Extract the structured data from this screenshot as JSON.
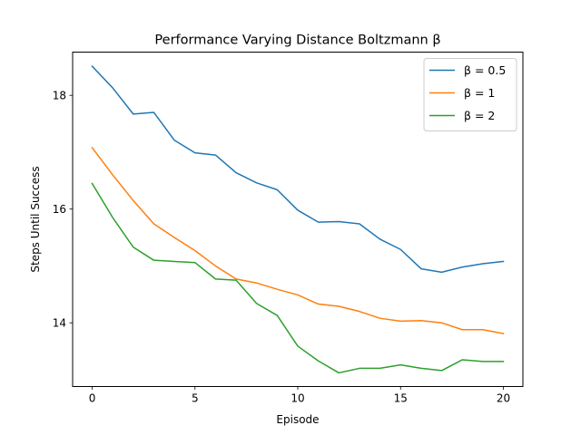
{
  "chart_data": {
    "type": "line",
    "title": "Performance Varying Distance Boltzmann β",
    "xlabel": "Episode",
    "ylabel": "Steps Until Success",
    "xlim": [
      -0.95,
      20.95
    ],
    "ylim": [
      12.88,
      18.76
    ],
    "xticks": [
      0,
      5,
      10,
      15,
      20
    ],
    "yticks": [
      14,
      16,
      18
    ],
    "legend_position": "top-right",
    "grid": false,
    "x": [
      0,
      1,
      2,
      3,
      4,
      5,
      6,
      7,
      8,
      9,
      10,
      11,
      12,
      13,
      14,
      15,
      16,
      17,
      18,
      19,
      20
    ],
    "series": [
      {
        "name": "β = 0.5",
        "color": "#1f77b4",
        "values": [
          18.51,
          18.13,
          17.67,
          17.7,
          17.21,
          16.99,
          16.95,
          16.64,
          16.46,
          16.34,
          15.98,
          15.77,
          15.78,
          15.74,
          15.47,
          15.29,
          14.95,
          14.89,
          14.98,
          15.04,
          15.08
        ]
      },
      {
        "name": "β = 1",
        "color": "#ff7f0e",
        "values": [
          17.08,
          16.6,
          16.15,
          15.74,
          15.5,
          15.27,
          15.0,
          14.77,
          14.7,
          14.59,
          14.49,
          14.33,
          14.29,
          14.2,
          14.08,
          14.03,
          14.04,
          14.0,
          13.88,
          13.88,
          13.81
        ]
      },
      {
        "name": "β = 2",
        "color": "#2ca02c",
        "values": [
          16.45,
          15.85,
          15.33,
          15.1,
          15.08,
          15.06,
          14.77,
          14.75,
          14.34,
          14.13,
          13.59,
          13.33,
          13.12,
          13.2,
          13.2,
          13.26,
          13.2,
          13.16,
          13.35,
          13.32,
          13.32
        ]
      }
    ]
  }
}
